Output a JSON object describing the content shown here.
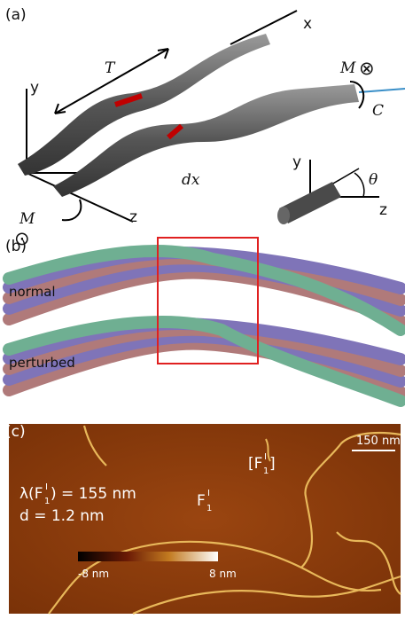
{
  "panel_a": {
    "label": "(a)",
    "axis_x": "x",
    "axis_y": "y",
    "axis_z": "z",
    "twist_period": "T",
    "torque_top": "M",
    "torque_top_symbol": "⊗",
    "clamp": "C",
    "segment": "dx",
    "torque_bottom": "M",
    "torque_bottom_symbol": "⊙",
    "inset_y": "y",
    "inset_z": "z",
    "inset_angle": "θ"
  },
  "panel_b": {
    "label": "(b)",
    "labels": [
      "normal",
      "perturbed"
    ]
  },
  "panel_c": {
    "label": "(c)",
    "scale_bar": "150 nm",
    "tag": {
      "open": "[F",
      "sup": "I",
      "sub": "1",
      "close": "]"
    },
    "wavelength": {
      "before": "λ(F",
      "sup": "I",
      "sub": "1",
      "after": ") = 155 nm"
    },
    "diameter": "d = 1.2 nm",
    "fibril": {
      "base": "F",
      "sup": "I",
      "sub": "1"
    },
    "colorbar": {
      "min": "-8 nm",
      "max": "8 nm"
    }
  }
}
